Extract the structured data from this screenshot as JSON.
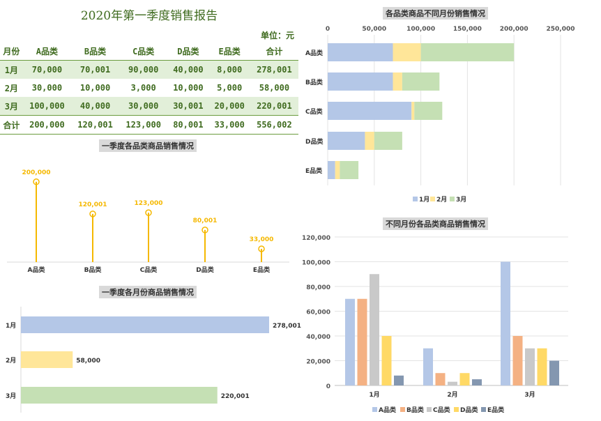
{
  "report": {
    "title": "2020年第一季度销售报告",
    "unit": "单位：元",
    "headers": [
      "月份",
      "A品类",
      "B品类",
      "C品类",
      "D品类",
      "E品类",
      "合计"
    ],
    "rows": [
      [
        "1月",
        "70,000",
        "70,001",
        "90,000",
        "40,000",
        "8,000",
        "278,001"
      ],
      [
        "2月",
        "30,000",
        "10,000",
        "3,000",
        "10,000",
        "5,000",
        "58,000"
      ],
      [
        "3月",
        "100,000",
        "40,000",
        "30,000",
        "30,001",
        "20,000",
        "220,001"
      ],
      [
        "合计",
        "200,000",
        "120,001",
        "123,000",
        "80,001",
        "33,000",
        "556,002"
      ]
    ]
  },
  "colors": {
    "jan": "#b4c7e7",
    "feb": "#ffe699",
    "mar": "#c5e0b4",
    "lollipop": "#f5b800",
    "catA": "#b4c7e7",
    "catB": "#f4b183",
    "catC": "#c9c9c9",
    "catD": "#ffd966",
    "catE": "#8497b0"
  },
  "chart_data": [
    {
      "id": "lollipop",
      "type": "scatter",
      "title": "一季度各品类商品销售情况",
      "categories": [
        "A品类",
        "B品类",
        "C品类",
        "D品类",
        "E品类"
      ],
      "values": [
        200000,
        120001,
        123000,
        80001,
        33000
      ],
      "labels": [
        "200,000",
        "120,001",
        "123,000",
        "80,001",
        "33,000"
      ],
      "ylim": [
        0,
        250000
      ]
    },
    {
      "id": "month_bar",
      "type": "bar",
      "title": "一季度各月份商品销售情况",
      "categories": [
        "1月",
        "2月",
        "3月"
      ],
      "values": [
        278001,
        58000,
        220001
      ],
      "labels": [
        "278,001",
        "58,000",
        "220,001"
      ],
      "xlim": [
        0,
        278001
      ]
    },
    {
      "id": "stacked",
      "type": "bar",
      "title": "各品类商品不同月份销售情况",
      "categories": [
        "A品类",
        "B品类",
        "C品类",
        "D品类",
        "E品类"
      ],
      "xticks": [
        "0",
        "50,000",
        "100,000",
        "150,000",
        "200,000",
        "250,000"
      ],
      "xlim": [
        0,
        250000
      ],
      "series": [
        {
          "name": "1月",
          "values": [
            70000,
            70001,
            90000,
            40000,
            8000
          ]
        },
        {
          "name": "2月",
          "values": [
            30000,
            10000,
            3000,
            10000,
            5000
          ]
        },
        {
          "name": "3月",
          "values": [
            100000,
            40000,
            30000,
            30001,
            20000
          ]
        }
      ],
      "legend": "bottom"
    },
    {
      "id": "grouped",
      "type": "bar",
      "title": "不同月份各品类商品销售情况",
      "categories": [
        "1月",
        "2月",
        "3月"
      ],
      "yticks": [
        "0",
        "20,000",
        "40,000",
        "60,000",
        "80,000",
        "100,000",
        "120,000"
      ],
      "ylim": [
        0,
        120000
      ],
      "series": [
        {
          "name": "A品类",
          "values": [
            70000,
            30000,
            100000
          ]
        },
        {
          "name": "B品类",
          "values": [
            70001,
            10000,
            40000
          ]
        },
        {
          "name": "C品类",
          "values": [
            90000,
            3000,
            30000
          ]
        },
        {
          "name": "D品类",
          "values": [
            40000,
            10000,
            30001
          ]
        },
        {
          "name": "E品类",
          "values": [
            8000,
            5000,
            20000
          ]
        }
      ],
      "legend": "bottom"
    }
  ]
}
